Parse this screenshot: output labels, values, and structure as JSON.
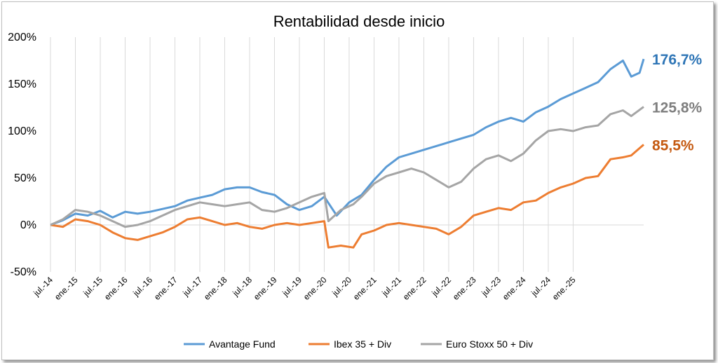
{
  "chart_data": {
    "type": "line",
    "title": "Rentabilidad desde inicio",
    "xlabel": "",
    "ylabel": "",
    "ylim": [
      -50,
      200
    ],
    "y_ticks": [
      "200%",
      "150%",
      "100%",
      "50%",
      "0%",
      "-50%"
    ],
    "y_tick_values": [
      200,
      150,
      100,
      50,
      0,
      -50
    ],
    "x_tick_labels": [
      "jul.-14",
      "ene.-15",
      "jul.-15",
      "ene.-16",
      "jul.-16",
      "ene.-17",
      "jul.-17",
      "ene.-18",
      "jul.-18",
      "ene.-19",
      "jul.-19",
      "ene.-20",
      "jul.-20",
      "ene.-21",
      "jul.-21",
      "ene.-22",
      "jul.-22",
      "ene.-23",
      "jul.-23",
      "ene.-24",
      "jul.-24",
      "ene.-25"
    ],
    "x_start": "2014-07",
    "x_end": "2025-06",
    "grid": "vertical",
    "legend_position": "bottom",
    "series": [
      {
        "name": "Avantage Fund",
        "color": "#5b9bd5",
        "end_label": "176,7%",
        "end_label_color": "#2e75b6",
        "points": [
          [
            0,
            0
          ],
          [
            3,
            5
          ],
          [
            6,
            12
          ],
          [
            9,
            10
          ],
          [
            12,
            15
          ],
          [
            15,
            8
          ],
          [
            18,
            14
          ],
          [
            21,
            12
          ],
          [
            24,
            14
          ],
          [
            27,
            17
          ],
          [
            30,
            20
          ],
          [
            33,
            26
          ],
          [
            36,
            29
          ],
          [
            39,
            32
          ],
          [
            42,
            38
          ],
          [
            45,
            40
          ],
          [
            48,
            40
          ],
          [
            51,
            35
          ],
          [
            54,
            32
          ],
          [
            57,
            22
          ],
          [
            60,
            16
          ],
          [
            63,
            20
          ],
          [
            66,
            30
          ],
          [
            69,
            10
          ],
          [
            72,
            24
          ],
          [
            75,
            32
          ],
          [
            78,
            48
          ],
          [
            81,
            62
          ],
          [
            84,
            72
          ],
          [
            87,
            76
          ],
          [
            90,
            80
          ],
          [
            93,
            84
          ],
          [
            96,
            88
          ],
          [
            99,
            92
          ],
          [
            102,
            96
          ],
          [
            105,
            104
          ],
          [
            108,
            110
          ],
          [
            111,
            114
          ],
          [
            114,
            110
          ],
          [
            117,
            120
          ],
          [
            120,
            126
          ],
          [
            123,
            134
          ],
          [
            126,
            140
          ],
          [
            129,
            146
          ],
          [
            132,
            152
          ],
          [
            135,
            166
          ],
          [
            138,
            175
          ],
          [
            140,
            158
          ],
          [
            142,
            162
          ],
          [
            143,
            176.7
          ]
        ]
      },
      {
        "name": "Ibex 35 + Div",
        "color": "#ed7d31",
        "end_label": "85,5%",
        "end_label_color": "#c55a11",
        "points": [
          [
            0,
            0
          ],
          [
            3,
            -2
          ],
          [
            6,
            6
          ],
          [
            9,
            4
          ],
          [
            12,
            0
          ],
          [
            15,
            -8
          ],
          [
            18,
            -14
          ],
          [
            21,
            -16
          ],
          [
            24,
            -12
          ],
          [
            27,
            -8
          ],
          [
            30,
            -2
          ],
          [
            33,
            6
          ],
          [
            36,
            8
          ],
          [
            39,
            4
          ],
          [
            42,
            0
          ],
          [
            45,
            2
          ],
          [
            48,
            -2
          ],
          [
            51,
            -4
          ],
          [
            54,
            0
          ],
          [
            57,
            2
          ],
          [
            60,
            0
          ],
          [
            63,
            2
          ],
          [
            66,
            4
          ],
          [
            67,
            -24
          ],
          [
            70,
            -22
          ],
          [
            73,
            -24
          ],
          [
            75,
            -10
          ],
          [
            78,
            -6
          ],
          [
            81,
            0
          ],
          [
            84,
            2
          ],
          [
            87,
            0
          ],
          [
            90,
            -2
          ],
          [
            93,
            -4
          ],
          [
            96,
            -10
          ],
          [
            99,
            -2
          ],
          [
            102,
            10
          ],
          [
            105,
            14
          ],
          [
            108,
            18
          ],
          [
            111,
            16
          ],
          [
            114,
            24
          ],
          [
            117,
            26
          ],
          [
            120,
            34
          ],
          [
            123,
            40
          ],
          [
            126,
            44
          ],
          [
            129,
            50
          ],
          [
            132,
            52
          ],
          [
            135,
            70
          ],
          [
            138,
            72
          ],
          [
            140,
            74
          ],
          [
            143,
            85.5
          ]
        ]
      },
      {
        "name": "Euro Stoxx 50 + Div",
        "color": "#a5a5a5",
        "end_label": "125,8%",
        "end_label_color": "#7f7f7f",
        "points": [
          [
            0,
            0
          ],
          [
            3,
            6
          ],
          [
            6,
            16
          ],
          [
            9,
            14
          ],
          [
            12,
            10
          ],
          [
            15,
            4
          ],
          [
            18,
            -2
          ],
          [
            21,
            0
          ],
          [
            24,
            4
          ],
          [
            27,
            10
          ],
          [
            30,
            16
          ],
          [
            33,
            20
          ],
          [
            36,
            24
          ],
          [
            39,
            22
          ],
          [
            42,
            20
          ],
          [
            45,
            22
          ],
          [
            48,
            24
          ],
          [
            51,
            16
          ],
          [
            54,
            14
          ],
          [
            57,
            18
          ],
          [
            60,
            24
          ],
          [
            63,
            30
          ],
          [
            66,
            34
          ],
          [
            67,
            4
          ],
          [
            70,
            16
          ],
          [
            73,
            22
          ],
          [
            75,
            30
          ],
          [
            78,
            44
          ],
          [
            81,
            52
          ],
          [
            84,
            56
          ],
          [
            87,
            60
          ],
          [
            90,
            56
          ],
          [
            93,
            48
          ],
          [
            96,
            40
          ],
          [
            99,
            46
          ],
          [
            102,
            60
          ],
          [
            105,
            70
          ],
          [
            108,
            74
          ],
          [
            111,
            68
          ],
          [
            114,
            76
          ],
          [
            117,
            90
          ],
          [
            120,
            100
          ],
          [
            123,
            102
          ],
          [
            126,
            100
          ],
          [
            129,
            104
          ],
          [
            132,
            106
          ],
          [
            135,
            118
          ],
          [
            138,
            122
          ],
          [
            140,
            116
          ],
          [
            143,
            125.8
          ]
        ]
      }
    ]
  }
}
